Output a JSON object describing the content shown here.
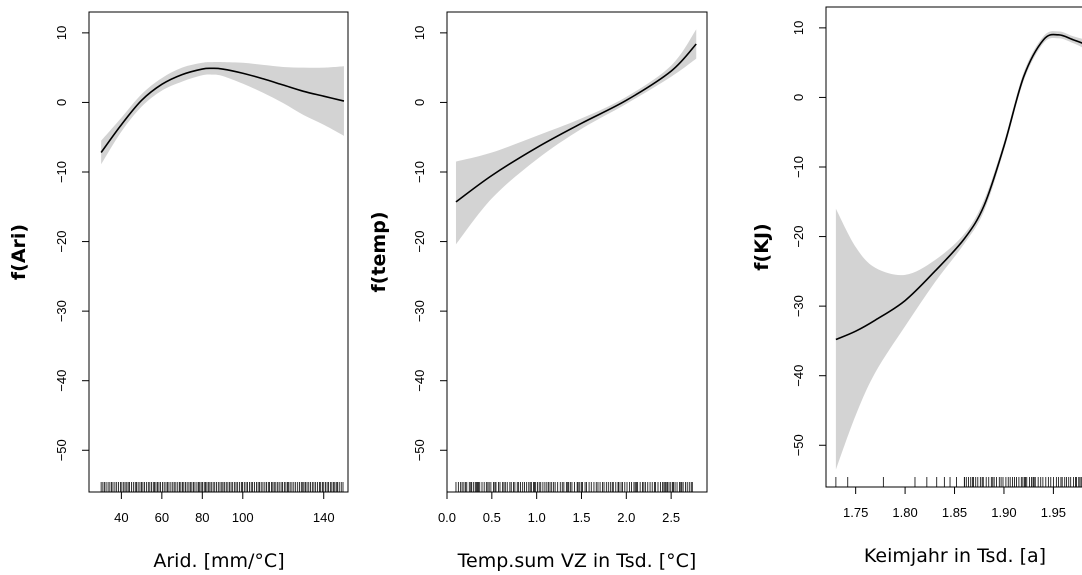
{
  "chart_data": [
    {
      "type": "line",
      "xlabel": "Arid. [mm/°C]",
      "ylabel": "f(Ari)",
      "xlim": [
        24,
        152
      ],
      "ylim": [
        -56,
        13
      ],
      "x_ticks": [
        40,
        60,
        80,
        100,
        140
      ],
      "y_ticks": [
        10,
        0,
        -10,
        -20,
        -30,
        -40,
        -50
      ],
      "x": [
        30,
        40,
        50,
        60,
        70,
        80,
        85,
        90,
        100,
        110,
        120,
        130,
        140,
        150
      ],
      "fit": [
        -7.2,
        -3.2,
        0.3,
        2.6,
        4.0,
        4.8,
        4.9,
        4.8,
        4.2,
        3.4,
        2.5,
        1.6,
        0.9,
        0.2
      ],
      "upper": [
        -5.5,
        -2.2,
        1.2,
        3.5,
        5.0,
        5.7,
        5.8,
        5.8,
        5.7,
        5.4,
        5.1,
        5.0,
        5.0,
        5.2
      ],
      "lower": [
        -8.9,
        -4.2,
        -0.6,
        1.7,
        3.0,
        3.9,
        4.0,
        3.8,
        2.7,
        1.4,
        -0.1,
        -1.8,
        -3.2,
        -4.8
      ],
      "rug": "dense 30-150",
      "band_color": "#d3d3d3",
      "line_color": "#000000"
    },
    {
      "type": "line",
      "xlabel": "Temp.sum VZ in Tsd. [°C]",
      "ylabel": "f(temp)",
      "xlim": [
        0.0,
        2.9
      ],
      "ylim": [
        -56,
        13
      ],
      "x_ticks": [
        "0.0",
        "0.5",
        "1.0",
        "1.5",
        "2.0",
        "2.5"
      ],
      "y_ticks": [
        10,
        0,
        -10,
        -20,
        -30,
        -40,
        -50
      ],
      "x": [
        0.1,
        0.5,
        1.0,
        1.5,
        2.0,
        2.5,
        2.78
      ],
      "fit": [
        -14.3,
        -10.5,
        -6.5,
        -3.0,
        0.3,
        4.5,
        8.4
      ],
      "upper": [
        -8.5,
        -7.2,
        -4.8,
        -2.3,
        0.8,
        5.3,
        10.5
      ],
      "lower": [
        -20.4,
        -13.8,
        -8.2,
        -3.8,
        -0.2,
        3.7,
        6.3
      ],
      "rug": "0.1-2.75",
      "band_color": "#d3d3d3",
      "line_color": "#000000"
    },
    {
      "type": "line",
      "xlabel": "Keimjahr in Tsd. [a]",
      "ylabel": "f(KJ)",
      "xlim": [
        1.72,
        1.985
      ],
      "ylim": [
        -56,
        13
      ],
      "x_ticks": [
        "1.75",
        "1.80",
        "1.85",
        "1.90",
        "1.95"
      ],
      "y_ticks": [
        10,
        0,
        -10,
        -20,
        -30,
        -40,
        -50
      ],
      "x": [
        1.73,
        1.75,
        1.77,
        1.8,
        1.83,
        1.86,
        1.88,
        1.9,
        1.92,
        1.94,
        1.955,
        1.97,
        1.985
      ],
      "fit": [
        -34.8,
        -33.6,
        -32.0,
        -29.2,
        -25.0,
        -20.3,
        -15.5,
        -7.0,
        3.0,
        8.3,
        9.0,
        8.3,
        7.5
      ],
      "upper": [
        -16.0,
        -21.5,
        -24.5,
        -25.5,
        -23.4,
        -19.6,
        -14.7,
        -6.4,
        3.6,
        8.8,
        9.5,
        8.8,
        8.2
      ],
      "lower": [
        -53.5,
        -45.7,
        -39.5,
        -32.9,
        -26.6,
        -21.0,
        -16.3,
        -7.6,
        2.4,
        7.8,
        8.5,
        7.8,
        6.8
      ],
      "rug": "sparse 1.73-1.86, dense 1.86-1.985",
      "band_color": "#d3d3d3",
      "line_color": "#000000"
    }
  ]
}
